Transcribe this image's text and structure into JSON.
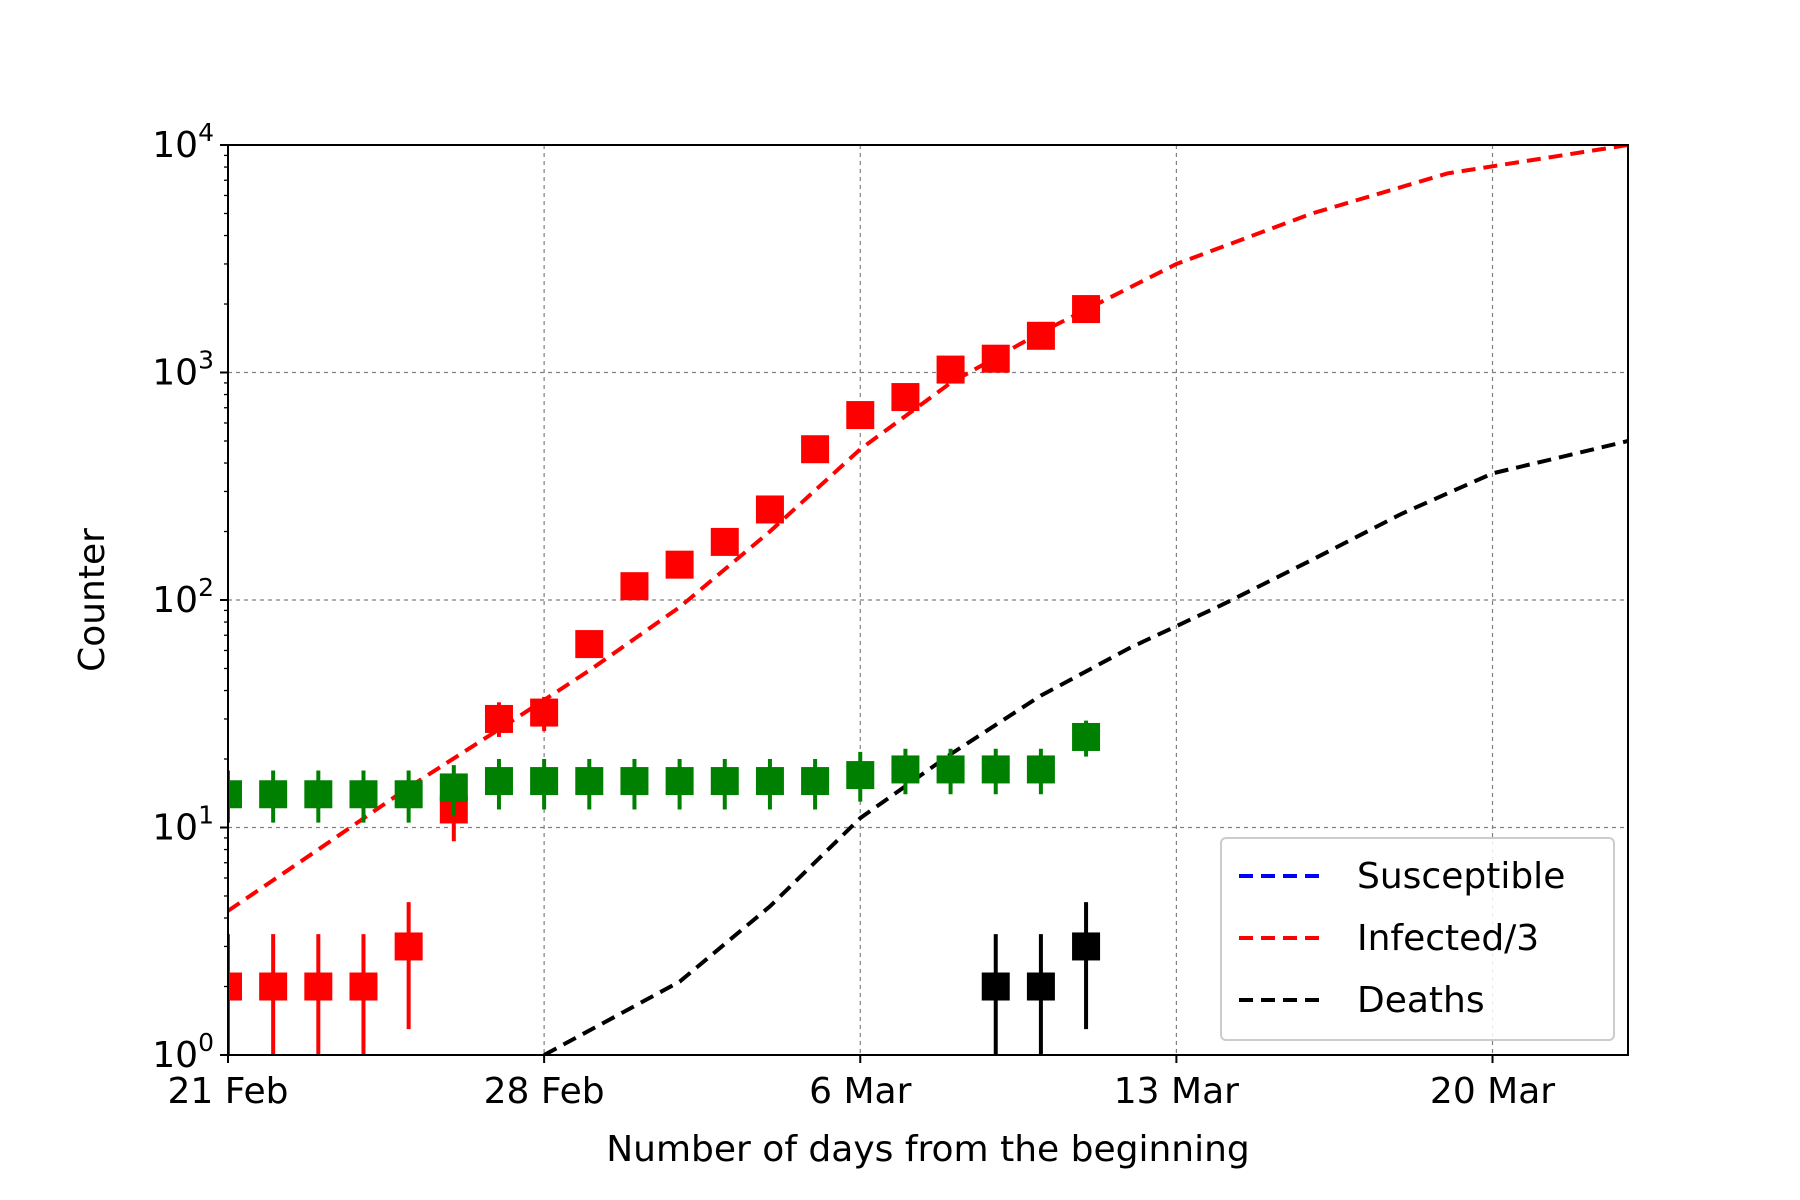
{
  "chart_data": {
    "type": "line",
    "xlabel": "Number of days from the beginning",
    "ylabel": "Counter",
    "x_ticks": [
      "21 Feb",
      "28 Feb",
      "6 Mar",
      "13 Mar",
      "20 Mar"
    ],
    "y_ticks": [
      {
        "base": "10",
        "exp": "0"
      },
      {
        "base": "10",
        "exp": "1"
      },
      {
        "base": "10",
        "exp": "2"
      },
      {
        "base": "10",
        "exp": "3"
      },
      {
        "base": "10",
        "exp": "4"
      }
    ],
    "xlim": [
      "2020-02-21",
      "2020-03-23"
    ],
    "ylim": [
      1,
      10000
    ],
    "yscale": "log",
    "grid": true,
    "legend_position": "lower-right",
    "series": [
      {
        "name": "Susceptible",
        "kind": "line",
        "style": "dashed",
        "color": "#0000ff",
        "x": [],
        "y": []
      },
      {
        "name": "Infected/3",
        "kind": "line",
        "style": "dashed",
        "color": "#ff0000",
        "x": [
          "2020-02-21",
          "2020-02-23",
          "2020-02-25",
          "2020-02-27",
          "2020-02-29",
          "2020-03-02",
          "2020-03-04",
          "2020-03-06",
          "2020-03-08",
          "2020-03-10",
          "2020-03-13",
          "2020-03-16",
          "2020-03-19",
          "2020-03-23"
        ],
        "y": [
          4.3,
          8,
          15,
          27,
          49,
          93,
          200,
          460,
          900,
          1500,
          3000,
          5000,
          7500,
          10000
        ]
      },
      {
        "name": "Deaths",
        "kind": "line",
        "style": "dashed",
        "color": "#000000",
        "x": [
          "2020-02-28",
          "2020-03-02",
          "2020-03-04",
          "2020-03-06",
          "2020-03-08",
          "2020-03-10",
          "2020-03-12",
          "2020-03-14",
          "2020-03-16",
          "2020-03-18",
          "2020-03-20",
          "2020-03-23"
        ],
        "y": [
          1,
          2.1,
          4.5,
          11,
          21,
          38,
          62,
          95,
          150,
          240,
          360,
          500
        ]
      },
      {
        "kind": "markers",
        "color": "#ff0000",
        "x": [
          "2020-02-21",
          "2020-02-22",
          "2020-02-23",
          "2020-02-24",
          "2020-02-25",
          "2020-02-26",
          "2020-02-27",
          "2020-02-28",
          "2020-02-29",
          "2020-03-01",
          "2020-03-02",
          "2020-03-03",
          "2020-03-04",
          "2020-03-05",
          "2020-03-06",
          "2020-03-07",
          "2020-03-08",
          "2020-03-09",
          "2020-03-10",
          "2020-03-11"
        ],
        "y": [
          2,
          2,
          2,
          2,
          3,
          12,
          30,
          32,
          64,
          115,
          143,
          180,
          250,
          460,
          650,
          780,
          1030,
          1150,
          1450,
          1900
        ],
        "err_lo": [
          1,
          1,
          1,
          1,
          1.3,
          8.7,
          25,
          26.5,
          56,
          104.5,
          131,
          166.5,
          234,
          438.5,
          624.5,
          752,
          998,
          1116,
          1412,
          1856
        ],
        "err_hi": [
          3.4,
          3.4,
          3.4,
          3.4,
          4.7,
          15.5,
          35.5,
          37.5,
          72,
          125.5,
          155,
          193.5,
          266,
          481.5,
          675.5,
          808,
          1062,
          1184,
          1488,
          1944
        ]
      },
      {
        "kind": "markers",
        "color": "#008000",
        "x": [
          "2020-02-21",
          "2020-02-22",
          "2020-02-23",
          "2020-02-24",
          "2020-02-25",
          "2020-02-26",
          "2020-02-27",
          "2020-02-28",
          "2020-02-29",
          "2020-03-01",
          "2020-03-02",
          "2020-03-03",
          "2020-03-04",
          "2020-03-05",
          "2020-03-06",
          "2020-03-07",
          "2020-03-08",
          "2020-03-09",
          "2020-03-10",
          "2020-03-11"
        ],
        "y": [
          14,
          14,
          14,
          14,
          14,
          15,
          16,
          16,
          16,
          16,
          16,
          16,
          16,
          16,
          17,
          18,
          18,
          18,
          18,
          25
        ],
        "err_lo": [
          10.5,
          10.5,
          10.5,
          10.5,
          10.5,
          11.2,
          12,
          12,
          12,
          12,
          12,
          12,
          12,
          12,
          13,
          14,
          14,
          14,
          14,
          20.5
        ],
        "err_hi": [
          17.8,
          17.8,
          17.8,
          17.8,
          17.8,
          18.8,
          20,
          20,
          20,
          20,
          20,
          20,
          20,
          20,
          21.5,
          22.2,
          22.2,
          22.2,
          22.2,
          29.5
        ]
      },
      {
        "kind": "markers",
        "color": "#000000",
        "x": [
          "2020-03-09",
          "2020-03-10",
          "2020-03-11"
        ],
        "y": [
          2,
          2,
          3
        ],
        "err_lo": [
          1,
          1,
          1.3
        ],
        "err_hi": [
          3.4,
          3.4,
          4.7
        ]
      }
    ]
  }
}
